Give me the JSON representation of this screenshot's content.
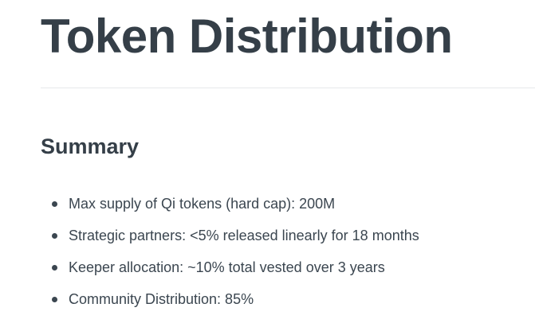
{
  "title": "Token Distribution",
  "section": "Summary",
  "items": [
    "Max supply of Qi tokens (hard cap): 200M",
    "Strategic partners: <5% released linearly for 18 months",
    "Keeper allocation: ~10% total vested over 3 years",
    "Community Distribution: 85%"
  ]
}
